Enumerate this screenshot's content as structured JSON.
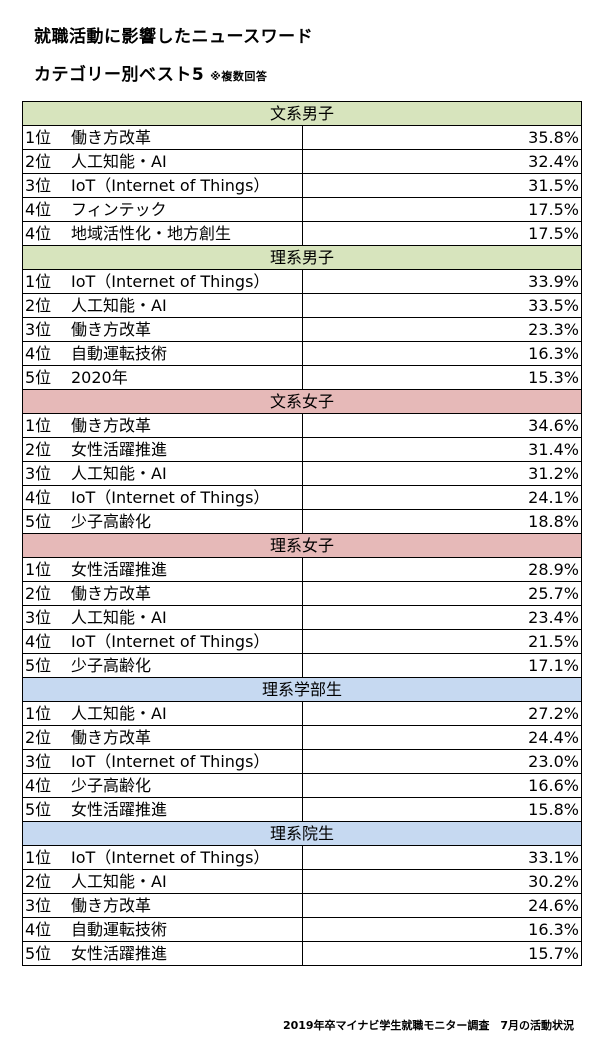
{
  "title": "就職活動に影響したニュースワード",
  "subtitle": "カテゴリー別ベスト5",
  "note": "※複数回答",
  "footer": "2019年卒マイナビ学生就職モニター調査　7月の活動状況",
  "colors": {
    "green_header": "#d7e4bd",
    "pink_header": "#e6b9b8",
    "blue_header": "#c6d9f1"
  },
  "sections": [
    {
      "name": "文系男子",
      "color": "#d7e4bd",
      "rows": [
        {
          "rank": "1位",
          "item": "働き方改革",
          "pct": "35.8%"
        },
        {
          "rank": "2位",
          "item": "人工知能・AI",
          "pct": "32.4%"
        },
        {
          "rank": "3位",
          "item": "IoT（Internet of Things）",
          "pct": "31.5%"
        },
        {
          "rank": "4位",
          "item": "フィンテック",
          "pct": "17.5%"
        },
        {
          "rank": "4位",
          "item": "地域活性化・地方創生",
          "pct": "17.5%"
        }
      ]
    },
    {
      "name": "理系男子",
      "color": "#d7e4bd",
      "rows": [
        {
          "rank": "1位",
          "item": "IoT（Internet of Things）",
          "pct": "33.9%"
        },
        {
          "rank": "2位",
          "item": "人工知能・AI",
          "pct": "33.5%"
        },
        {
          "rank": "3位",
          "item": "働き方改革",
          "pct": "23.3%"
        },
        {
          "rank": "4位",
          "item": "自動運転技術",
          "pct": "16.3%"
        },
        {
          "rank": "5位",
          "item": "2020年",
          "pct": "15.3%"
        }
      ]
    },
    {
      "name": "文系女子",
      "color": "#e6b9b8",
      "rows": [
        {
          "rank": "1位",
          "item": "働き方改革",
          "pct": "34.6%"
        },
        {
          "rank": "2位",
          "item": "女性活躍推進",
          "pct": "31.4%"
        },
        {
          "rank": "3位",
          "item": "人工知能・AI",
          "pct": "31.2%"
        },
        {
          "rank": "4位",
          "item": "IoT（Internet of Things）",
          "pct": "24.1%"
        },
        {
          "rank": "5位",
          "item": "少子高齢化",
          "pct": "18.8%"
        }
      ]
    },
    {
      "name": "理系女子",
      "color": "#e6b9b8",
      "rows": [
        {
          "rank": "1位",
          "item": "女性活躍推進",
          "pct": "28.9%"
        },
        {
          "rank": "2位",
          "item": "働き方改革",
          "pct": "25.7%"
        },
        {
          "rank": "3位",
          "item": "人工知能・AI",
          "pct": "23.4%"
        },
        {
          "rank": "4位",
          "item": "IoT（Internet of Things）",
          "pct": "21.5%"
        },
        {
          "rank": "5位",
          "item": "少子高齢化",
          "pct": "17.1%"
        }
      ]
    },
    {
      "name": "理系学部生",
      "color": "#c6d9f1",
      "rows": [
        {
          "rank": "1位",
          "item": "人工知能・AI",
          "pct": "27.2%"
        },
        {
          "rank": "2位",
          "item": "働き方改革",
          "pct": "24.4%"
        },
        {
          "rank": "3位",
          "item": "IoT（Internet of Things）",
          "pct": "23.0%"
        },
        {
          "rank": "4位",
          "item": "少子高齢化",
          "pct": "16.6%"
        },
        {
          "rank": "5位",
          "item": "女性活躍推進",
          "pct": "15.8%"
        }
      ]
    },
    {
      "name": "理系院生",
      "color": "#c6d9f1",
      "rows": [
        {
          "rank": "1位",
          "item": "IoT（Internet of Things）",
          "pct": "33.1%"
        },
        {
          "rank": "2位",
          "item": "人工知能・AI",
          "pct": "30.2%"
        },
        {
          "rank": "3位",
          "item": "働き方改革",
          "pct": "24.6%"
        },
        {
          "rank": "4位",
          "item": "自動運転技術",
          "pct": "16.3%"
        },
        {
          "rank": "5位",
          "item": "女性活躍推進",
          "pct": "15.7%"
        }
      ]
    }
  ]
}
